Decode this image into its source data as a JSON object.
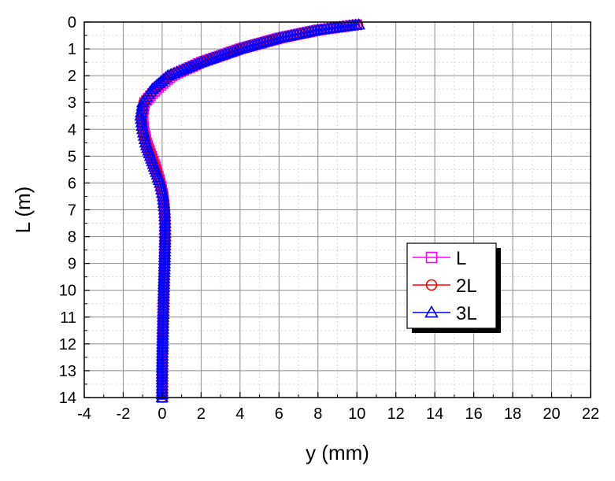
{
  "chart_data": {
    "type": "line",
    "xlabel": "y (mm)",
    "ylabel": "L (m)",
    "xlim": [
      -4,
      22
    ],
    "ylim": [
      0,
      14
    ],
    "y_axis_inverted": true,
    "x_axis_position": "bottom",
    "x_ticks": [
      "-4",
      "-2",
      "0",
      "2",
      "4",
      "6",
      "8",
      "10",
      "12",
      "14",
      "16",
      "18",
      "20",
      "22"
    ],
    "y_ticks": [
      "0",
      "1",
      "2",
      "3",
      "4",
      "5",
      "6",
      "7",
      "8",
      "9",
      "10",
      "11",
      "12",
      "13",
      "14"
    ],
    "grid": true,
    "legend_position": "right-middle",
    "series": [
      {
        "name": "L",
        "color": "#ff00ff",
        "marker": "square",
        "points": [
          [
            10.0,
            0.1
          ],
          [
            8.0,
            0.3
          ],
          [
            6.0,
            0.6
          ],
          [
            4.0,
            1.0
          ],
          [
            2.0,
            1.5
          ],
          [
            0.5,
            2.0
          ],
          [
            -0.3,
            2.5
          ],
          [
            -0.9,
            3.0
          ],
          [
            -1.0,
            3.5
          ],
          [
            -0.95,
            4.0
          ],
          [
            -0.8,
            4.5
          ],
          [
            -0.55,
            5.0
          ],
          [
            -0.3,
            5.5
          ],
          [
            -0.1,
            6.0
          ],
          [
            0.05,
            6.5
          ],
          [
            0.12,
            7.0
          ],
          [
            0.15,
            7.5
          ],
          [
            0.15,
            8.0
          ],
          [
            0.12,
            9.0
          ],
          [
            0.08,
            10.0
          ],
          [
            0.05,
            11.0
          ],
          [
            0.02,
            12.0
          ],
          [
            0.0,
            13.0
          ],
          [
            0.0,
            14.0
          ]
        ]
      },
      {
        "name": "2L",
        "color": "#ff0000",
        "marker": "circle",
        "points": [
          [
            10.05,
            0.1
          ],
          [
            8.0,
            0.3
          ],
          [
            6.0,
            0.6
          ],
          [
            4.0,
            1.0
          ],
          [
            2.0,
            1.5
          ],
          [
            0.4,
            2.0
          ],
          [
            -0.4,
            2.5
          ],
          [
            -0.95,
            3.0
          ],
          [
            -1.05,
            3.5
          ],
          [
            -1.0,
            4.0
          ],
          [
            -0.82,
            4.5
          ],
          [
            -0.55,
            5.0
          ],
          [
            -0.3,
            5.5
          ],
          [
            -0.1,
            6.0
          ],
          [
            0.05,
            6.5
          ],
          [
            0.12,
            7.0
          ],
          [
            0.15,
            7.5
          ],
          [
            0.15,
            8.0
          ],
          [
            0.12,
            9.0
          ],
          [
            0.08,
            10.0
          ],
          [
            0.05,
            11.0
          ],
          [
            0.02,
            12.0
          ],
          [
            0.0,
            13.0
          ],
          [
            0.0,
            14.0
          ]
        ]
      },
      {
        "name": "3L",
        "color": "#0000ff",
        "marker": "triangle",
        "points": [
          [
            10.1,
            0.1
          ],
          [
            8.0,
            0.3
          ],
          [
            6.0,
            0.6
          ],
          [
            4.0,
            1.0
          ],
          [
            2.0,
            1.5
          ],
          [
            0.3,
            2.0
          ],
          [
            -0.5,
            2.5
          ],
          [
            -1.0,
            3.0
          ],
          [
            -1.1,
            3.5
          ],
          [
            -1.0,
            4.0
          ],
          [
            -0.85,
            4.5
          ],
          [
            -0.6,
            5.0
          ],
          [
            -0.35,
            5.5
          ],
          [
            -0.1,
            6.0
          ],
          [
            0.05,
            6.5
          ],
          [
            0.12,
            7.0
          ],
          [
            0.15,
            7.5
          ],
          [
            0.15,
            8.0
          ],
          [
            0.12,
            9.0
          ],
          [
            0.08,
            10.0
          ],
          [
            0.05,
            11.0
          ],
          [
            0.02,
            12.0
          ],
          [
            0.0,
            13.0
          ],
          [
            0.0,
            14.0
          ]
        ]
      }
    ]
  }
}
